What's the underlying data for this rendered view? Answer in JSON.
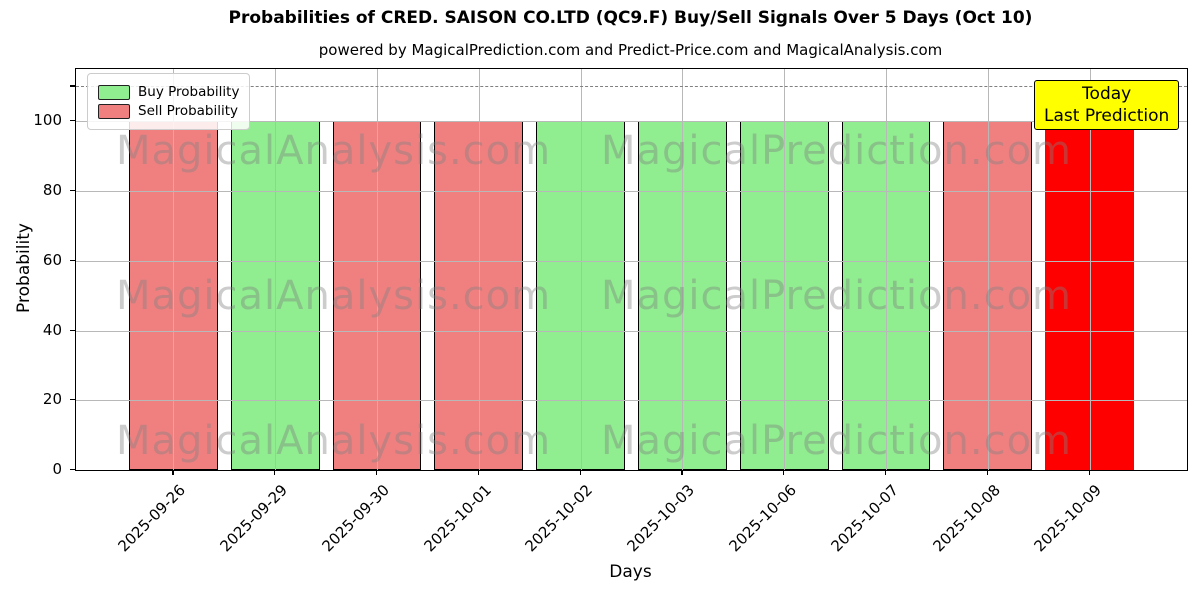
{
  "title": "Probabilities of CRED. SAISON CO.LTD (QC9.F) Buy/Sell Signals Over 5 Days (Oct 10)",
  "subtitle": "powered by MagicalPrediction.com and Predict-Price.com and MagicalAnalysis.com",
  "annotation": {
    "line1": "Today",
    "line2": "Last Prediction",
    "bg_color": "#ffff00",
    "border_color": "#000000"
  },
  "chart_data": {
    "type": "bar",
    "title": "Probabilities of CRED. SAISON CO.LTD (QC9.F) Buy/Sell Signals Over 5 Days (Oct 10)",
    "xlabel": "Days",
    "ylabel": "Probability",
    "ylim": [
      0,
      115
    ],
    "yticks": [
      0,
      20,
      40,
      60,
      80,
      100
    ],
    "extra_unlabeled_ytick": 110,
    "grid": true,
    "categories": [
      "2025-09-26",
      "2025-09-29",
      "2025-09-30",
      "2025-10-01",
      "2025-10-02",
      "2025-10-03",
      "2025-10-06",
      "2025-10-07",
      "2025-10-08",
      "2025-10-09"
    ],
    "series": [
      {
        "name": "Probability",
        "values": [
          100,
          100,
          100,
          100,
          100,
          100,
          100,
          100,
          100,
          100
        ]
      }
    ],
    "bar_signals": [
      "sell",
      "buy",
      "sell",
      "sell",
      "buy",
      "buy",
      "buy",
      "buy",
      "sell",
      "today"
    ],
    "colors": {
      "buy": "#90ee90",
      "sell": "#f08080",
      "today": "#ff0000",
      "bar_edge": "#000000",
      "grid": "#b8b8b8"
    },
    "threshold_line": {
      "y": 110,
      "style": "dashed",
      "color": "#808080"
    },
    "legend": {
      "position": "upper-left",
      "entries": [
        {
          "label": "Buy Probability",
          "color": "#90ee90"
        },
        {
          "label": "Sell Probability",
          "color": "#f08080"
        }
      ]
    },
    "watermarks": {
      "left_text": "MagicalAnalysis.com",
      "right_text": "MagicalPrediction.com"
    }
  }
}
